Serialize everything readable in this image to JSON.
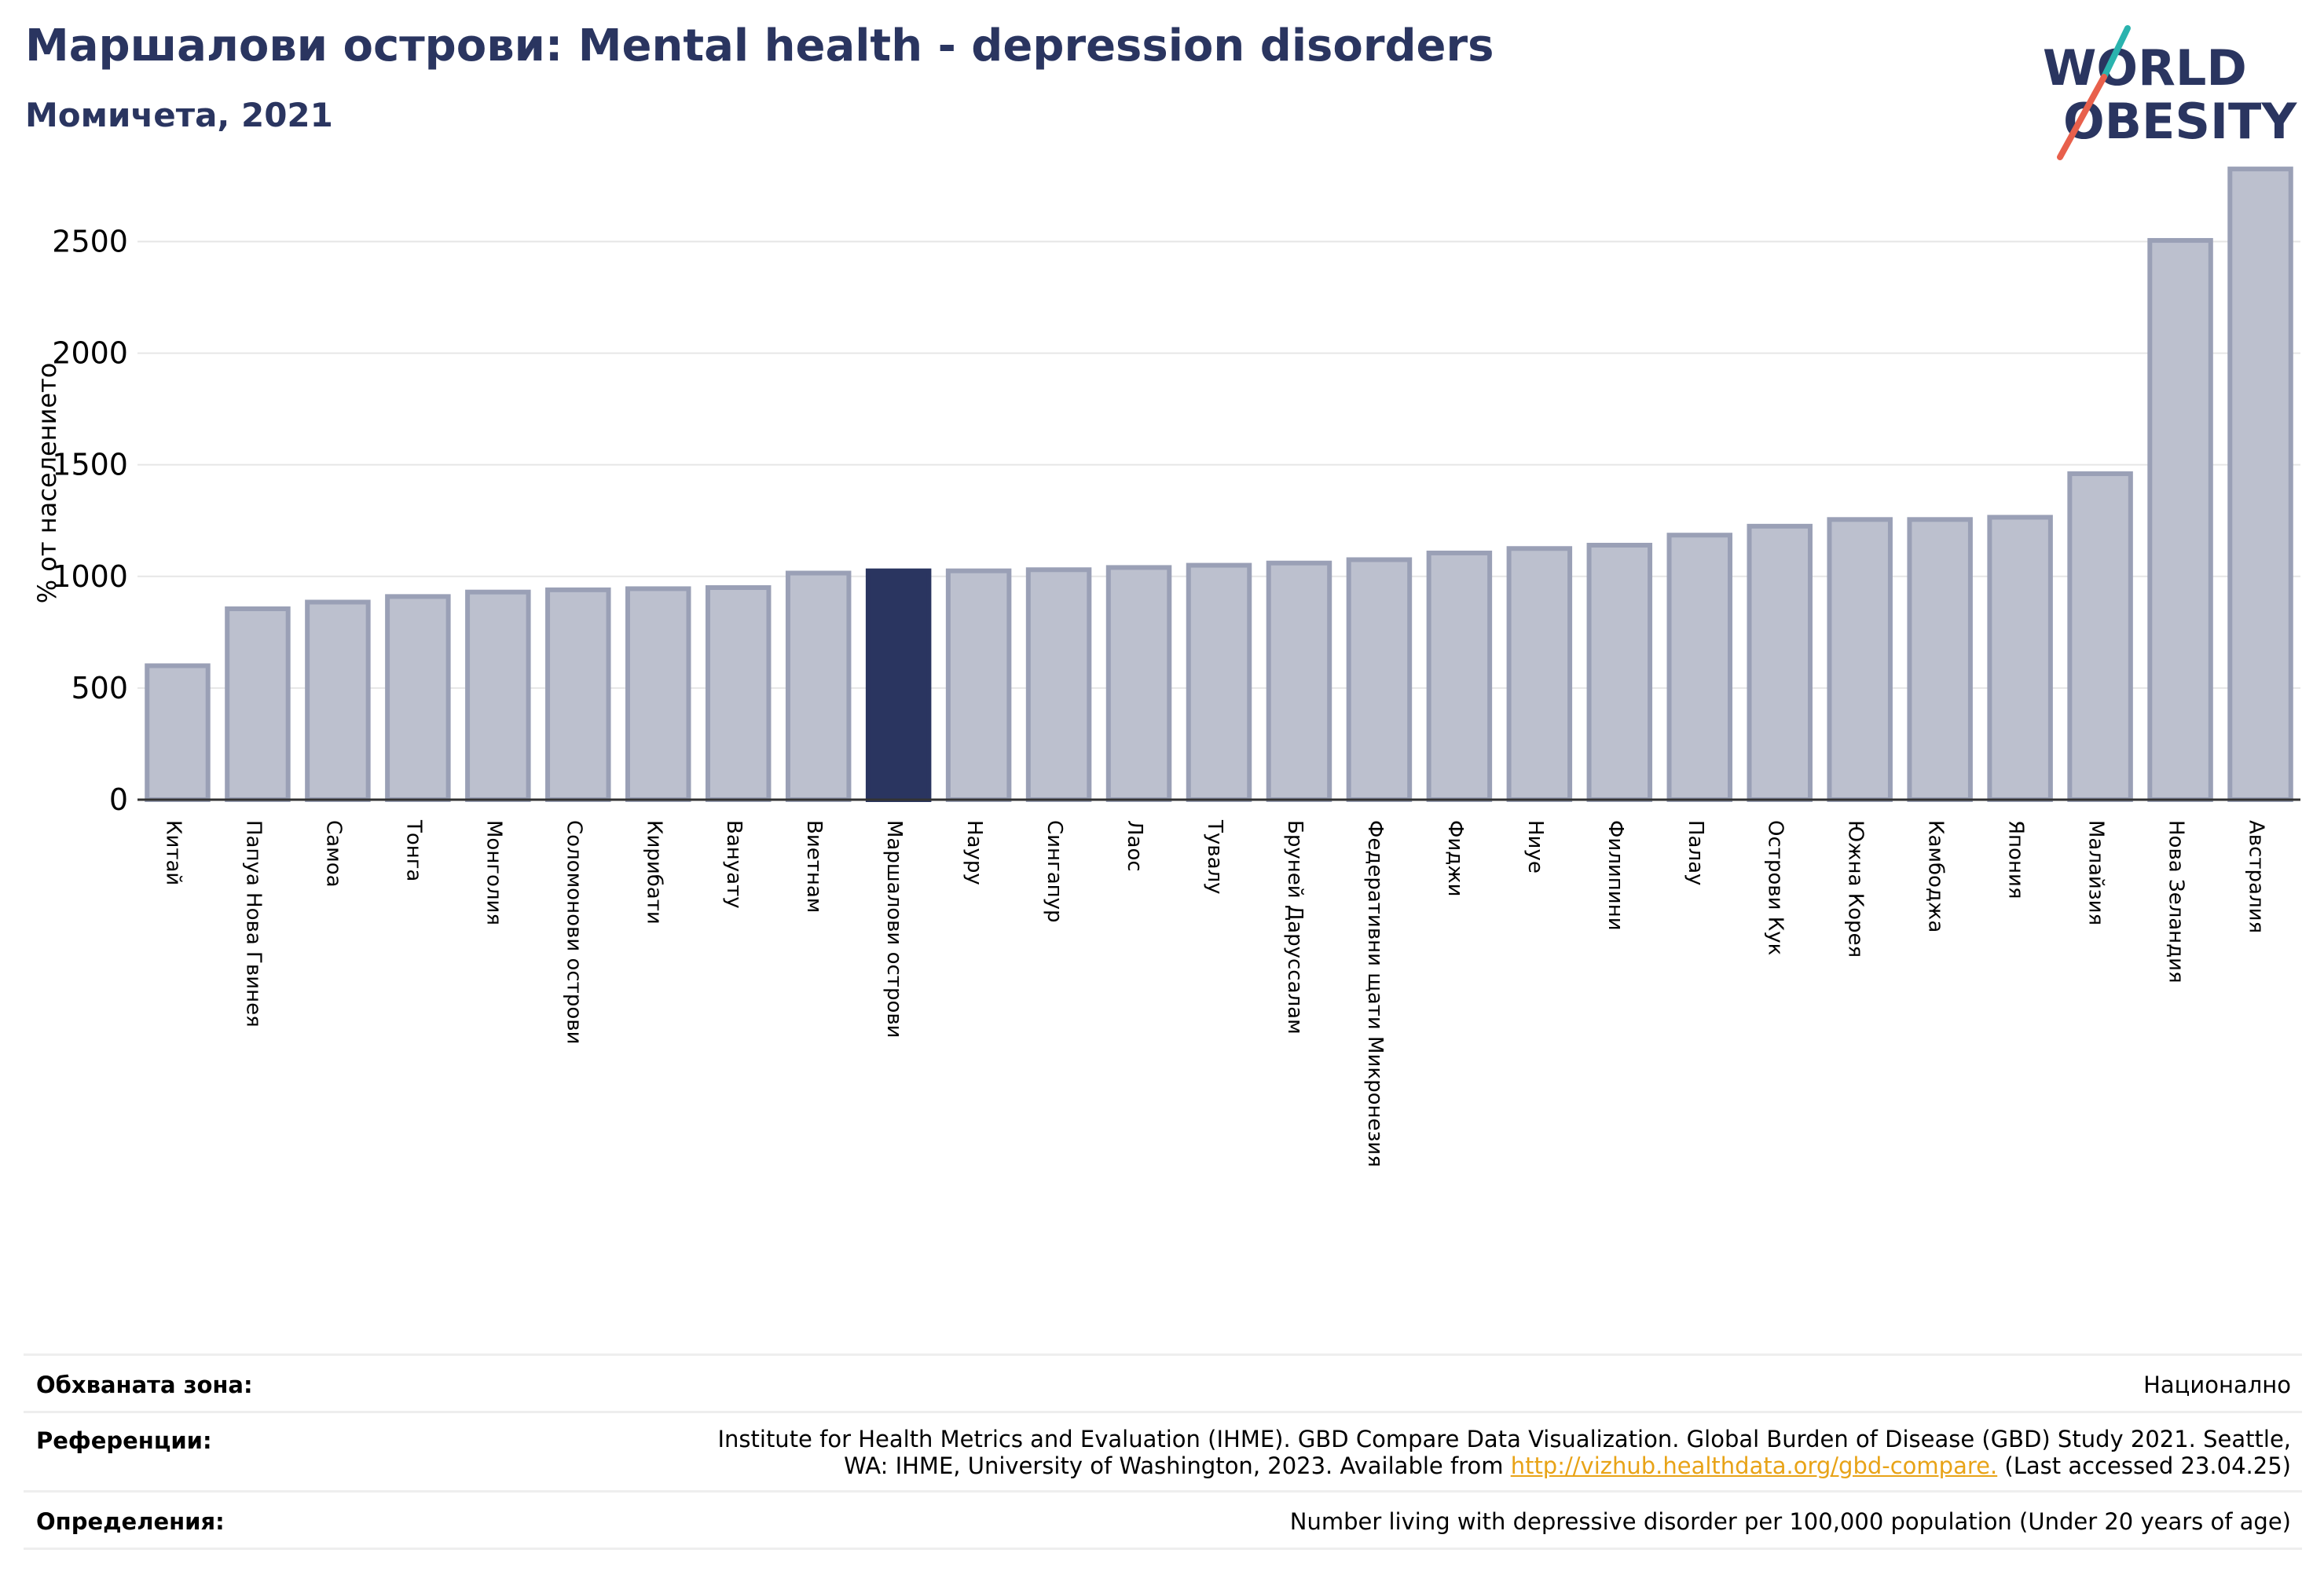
{
  "header": {
    "title": "Маршалови острови: Mental health - depression disorders",
    "subtitle": "Момичета, 2021"
  },
  "logo": {
    "line1": "WORLD",
    "line2": "OBESITY",
    "colors": {
      "text": "#2a3560",
      "slash_teal": "#2ab3ae",
      "slash_red": "#e8604c"
    }
  },
  "colors": {
    "bar": "#bcc0ce",
    "bar_stroke": "#9aa0b6",
    "highlight": "#2a3560",
    "grid": "#e6e6e6",
    "link": "#e8a317"
  },
  "chart_data": {
    "type": "bar",
    "ylabel": "% от населението",
    "ylim": [
      0,
      2850
    ],
    "yticks": [
      0,
      500,
      1000,
      1500,
      2000,
      2500
    ],
    "grid": true,
    "highlight": "Маршалови острови",
    "categories": [
      "Китай",
      "Папуа Нова Гвинея",
      "Самоа",
      "Тонга",
      "Монголия",
      "Соломонови острови",
      "Кирибати",
      "Вануату",
      "Виетнам",
      "Маршалови острови",
      "Науру",
      "Сингапур",
      "Лаос",
      "Тувалу",
      "Бруней Даруссалам",
      "Федеративни щати Микронезия",
      "Фиджи",
      "Ниуе",
      "Филипини",
      "Палау",
      "Острови Кук",
      "Южна Корея",
      "Камбоджа",
      "Япония",
      "Малайзия",
      "Нова Зеландия",
      "Австралия"
    ],
    "values": [
      600,
      855,
      885,
      910,
      930,
      940,
      945,
      950,
      1015,
      1025,
      1025,
      1030,
      1040,
      1050,
      1060,
      1075,
      1105,
      1125,
      1140,
      1185,
      1225,
      1255,
      1255,
      1265,
      1460,
      2505,
      2825
    ]
  },
  "footer": {
    "coverage_label": "Обхваната зона:",
    "coverage_value": "Национално",
    "references_label": "Референции:",
    "references_line1": "Institute for Health Metrics and Evaluation (IHME). GBD Compare Data Visualization. Global Burden of Disease (GBD) Study 2021. Seattle,",
    "references_line2_pre": "WA: IHME, University of Washington, 2023. Available from ",
    "references_link": "http://vizhub.healthdata.org/gbd-compare.",
    "references_line2_post": " (Last accessed 23.04.25)",
    "definitions_label": "Определения:",
    "definitions_value": "Number living with depressive disorder per 100,000 population (Under 20 years of age)"
  }
}
